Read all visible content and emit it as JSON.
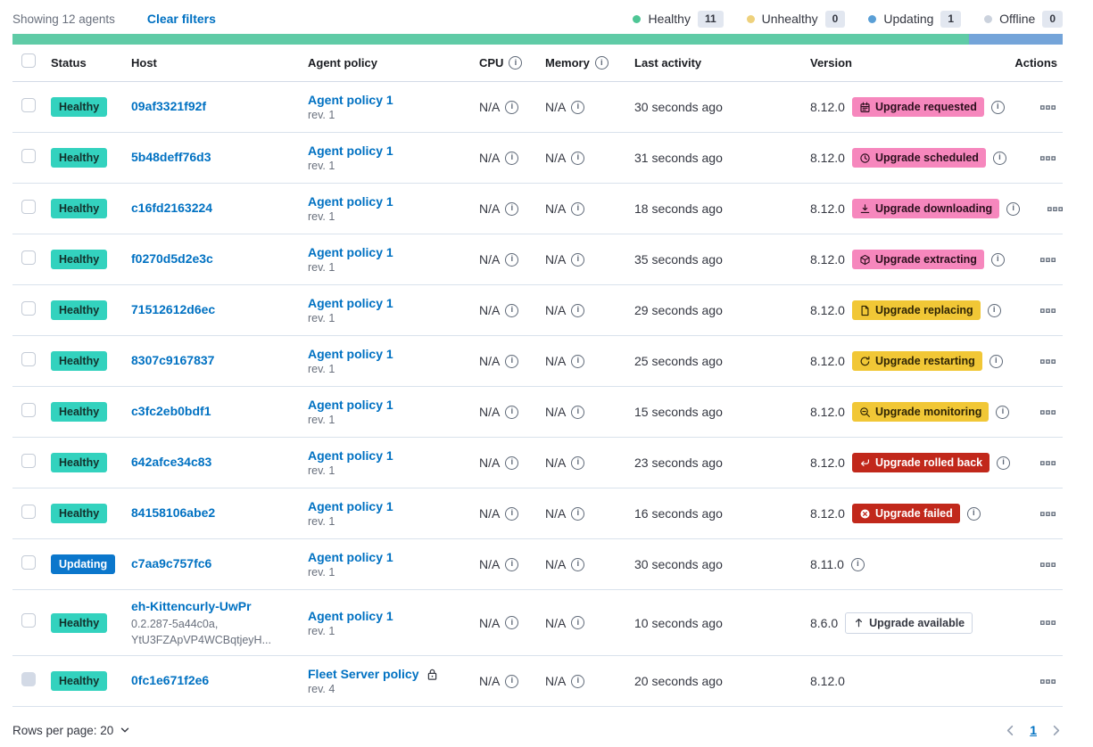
{
  "header": {
    "showing": "Showing 12 agents",
    "clear_filters": "Clear filters",
    "legend": [
      {
        "label": "Healthy",
        "count": "11",
        "dot_color": "#4ec695"
      },
      {
        "label": "Unhealthy",
        "count": "0",
        "dot_color": "#eed17c"
      },
      {
        "label": "Updating",
        "count": "1",
        "dot_color": "#5a9fd6"
      },
      {
        "label": "Offline",
        "count": "0",
        "dot_color": "#cbd2dd"
      }
    ]
  },
  "health_bar": {
    "segments": [
      {
        "status": "healthy",
        "color": "#5fcba6",
        "fraction": 0.917
      },
      {
        "status": "updating",
        "color": "#74a4d9",
        "fraction": 0.083
      }
    ]
  },
  "table": {
    "columns": {
      "status": "Status",
      "host": "Host",
      "policy": "Agent policy",
      "cpu": "CPU",
      "memory": "Memory",
      "activity": "Last activity",
      "version": "Version",
      "actions": "Actions"
    },
    "rows": [
      {
        "status": "Healthy",
        "host": "09af3321f92f",
        "policy": "Agent policy 1",
        "policy_rev": "rev. 1",
        "cpu": "N/A",
        "memory": "N/A",
        "activity": "30 seconds ago",
        "version": "8.12.0",
        "badge": {
          "label": "Upgrade requested",
          "icon": "calendar-icon",
          "style": "pink"
        }
      },
      {
        "status": "Healthy",
        "host": "5b48deff76d3",
        "policy": "Agent policy 1",
        "policy_rev": "rev. 1",
        "cpu": "N/A",
        "memory": "N/A",
        "activity": "31 seconds ago",
        "version": "8.12.0",
        "badge": {
          "label": "Upgrade scheduled",
          "icon": "clock-icon",
          "style": "pink"
        }
      },
      {
        "status": "Healthy",
        "host": "c16fd2163224",
        "policy": "Agent policy 1",
        "policy_rev": "rev. 1",
        "cpu": "N/A",
        "memory": "N/A",
        "activity": "18 seconds ago",
        "version": "8.12.0",
        "badge": {
          "label": "Upgrade downloading",
          "icon": "download-icon",
          "style": "pink"
        }
      },
      {
        "status": "Healthy",
        "host": "f0270d5d2e3c",
        "policy": "Agent policy 1",
        "policy_rev": "rev. 1",
        "cpu": "N/A",
        "memory": "N/A",
        "activity": "35 seconds ago",
        "version": "8.12.0",
        "badge": {
          "label": "Upgrade extracting",
          "icon": "package-icon",
          "style": "pink"
        }
      },
      {
        "status": "Healthy",
        "host": "71512612d6ec",
        "policy": "Agent policy 1",
        "policy_rev": "rev. 1",
        "cpu": "N/A",
        "memory": "N/A",
        "activity": "29 seconds ago",
        "version": "8.12.0",
        "badge": {
          "label": "Upgrade replacing",
          "icon": "document-icon",
          "style": "warning"
        }
      },
      {
        "status": "Healthy",
        "host": "8307c9167837",
        "policy": "Agent policy 1",
        "policy_rev": "rev. 1",
        "cpu": "N/A",
        "memory": "N/A",
        "activity": "25 seconds ago",
        "version": "8.12.0",
        "badge": {
          "label": "Upgrade restarting",
          "icon": "refresh-icon",
          "style": "warning"
        }
      },
      {
        "status": "Healthy",
        "host": "c3fc2eb0bdf1",
        "policy": "Agent policy 1",
        "policy_rev": "rev. 1",
        "cpu": "N/A",
        "memory": "N/A",
        "activity": "15 seconds ago",
        "version": "8.12.0",
        "badge": {
          "label": "Upgrade monitoring",
          "icon": "inspect-icon",
          "style": "warning"
        }
      },
      {
        "status": "Healthy",
        "host": "642afce34c83",
        "policy": "Agent policy 1",
        "policy_rev": "rev. 1",
        "cpu": "N/A",
        "memory": "N/A",
        "activity": "23 seconds ago",
        "version": "8.12.0",
        "badge": {
          "label": "Upgrade rolled back",
          "icon": "return-icon",
          "style": "danger"
        }
      },
      {
        "status": "Healthy",
        "host": "84158106abe2",
        "policy": "Agent policy 1",
        "policy_rev": "rev. 1",
        "cpu": "N/A",
        "memory": "N/A",
        "activity": "16 seconds ago",
        "version": "8.12.0",
        "badge": {
          "label": "Upgrade failed",
          "icon": "error-icon",
          "style": "danger"
        }
      },
      {
        "status": "Updating",
        "host": "c7aa9c757fc6",
        "policy": "Agent policy 1",
        "policy_rev": "rev. 1",
        "cpu": "N/A",
        "memory": "N/A",
        "activity": "30 seconds ago",
        "version": "8.11.0",
        "badge": null
      },
      {
        "status": "Healthy",
        "host": "eh-Kittencurly-UwPr",
        "host_sub1": "0.2.287-5a44c0a,",
        "host_sub2": "YtU3FZApVP4WCBqtjeyH...",
        "policy": "Agent policy 1",
        "policy_rev": "rev. 1",
        "cpu": "N/A",
        "memory": "N/A",
        "activity": "10 seconds ago",
        "version": "8.6.0",
        "badge": {
          "label": "Upgrade available",
          "icon": "arrow-up-icon",
          "style": "hollow"
        }
      },
      {
        "status": "Healthy",
        "host": "0fc1e671f2e6",
        "policy": "Fleet Server policy",
        "policy_rev": "rev. 4",
        "policy_locked": true,
        "cpu": "N/A",
        "memory": "N/A",
        "activity": "20 seconds ago",
        "version": "8.12.0",
        "badge": null,
        "checkbox_disabled": true
      }
    ]
  },
  "footer": {
    "rows_per_page": "Rows per page: 20",
    "page": "1"
  },
  "colors": {
    "link": "#0071c2",
    "healthy_badge": "#33d2be",
    "updating_badge": "#0b77cc",
    "pink_badge": "#f687bd",
    "warning_badge": "#f1c736",
    "danger_badge": "#c1281b",
    "row_border": "#d9e2ec"
  }
}
